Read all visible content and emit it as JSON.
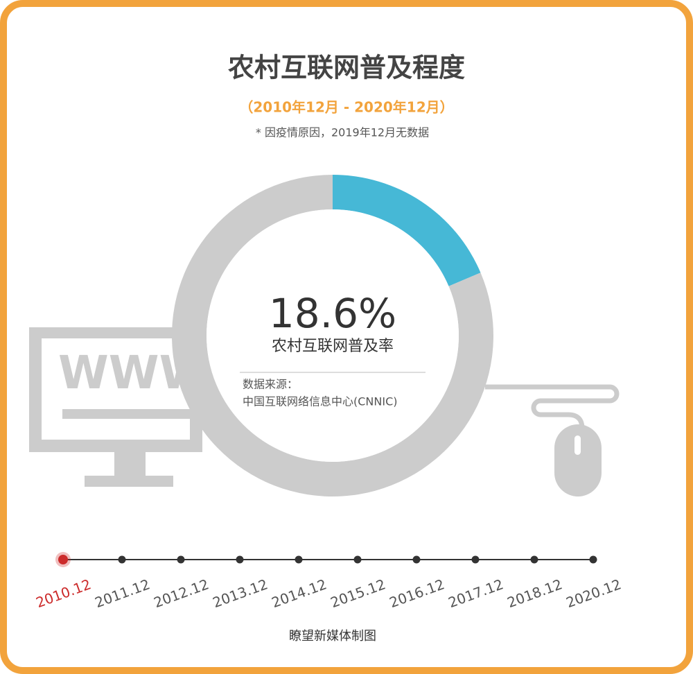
{
  "chart_data": {
    "type": "donut",
    "title": "农村互联网普及程度",
    "subtitle": "（2010年12月 - 2020年12月）",
    "note": "* 因疫情原因，2019年12月无数据",
    "values": [
      18.6,
      81.4
    ],
    "value_labels": [
      "18.6%",
      null
    ],
    "colors": [
      "#46b8d6",
      "#cccccc"
    ],
    "center_label": "农村互联网普及率",
    "source_label": "数据来源：",
    "source": "中国互联网络信息中心(CNNIC)",
    "monitor_text": "WWW",
    "timeline": [
      "2010.12",
      "2011.12",
      "2012.12",
      "2013.12",
      "2014.12",
      "2015.12",
      "2016.12",
      "2017.12",
      "2018.12",
      "2020.12"
    ],
    "selected": 0,
    "selected_color": "#cc2b2b",
    "credit": "瞭望新媒体制图"
  }
}
